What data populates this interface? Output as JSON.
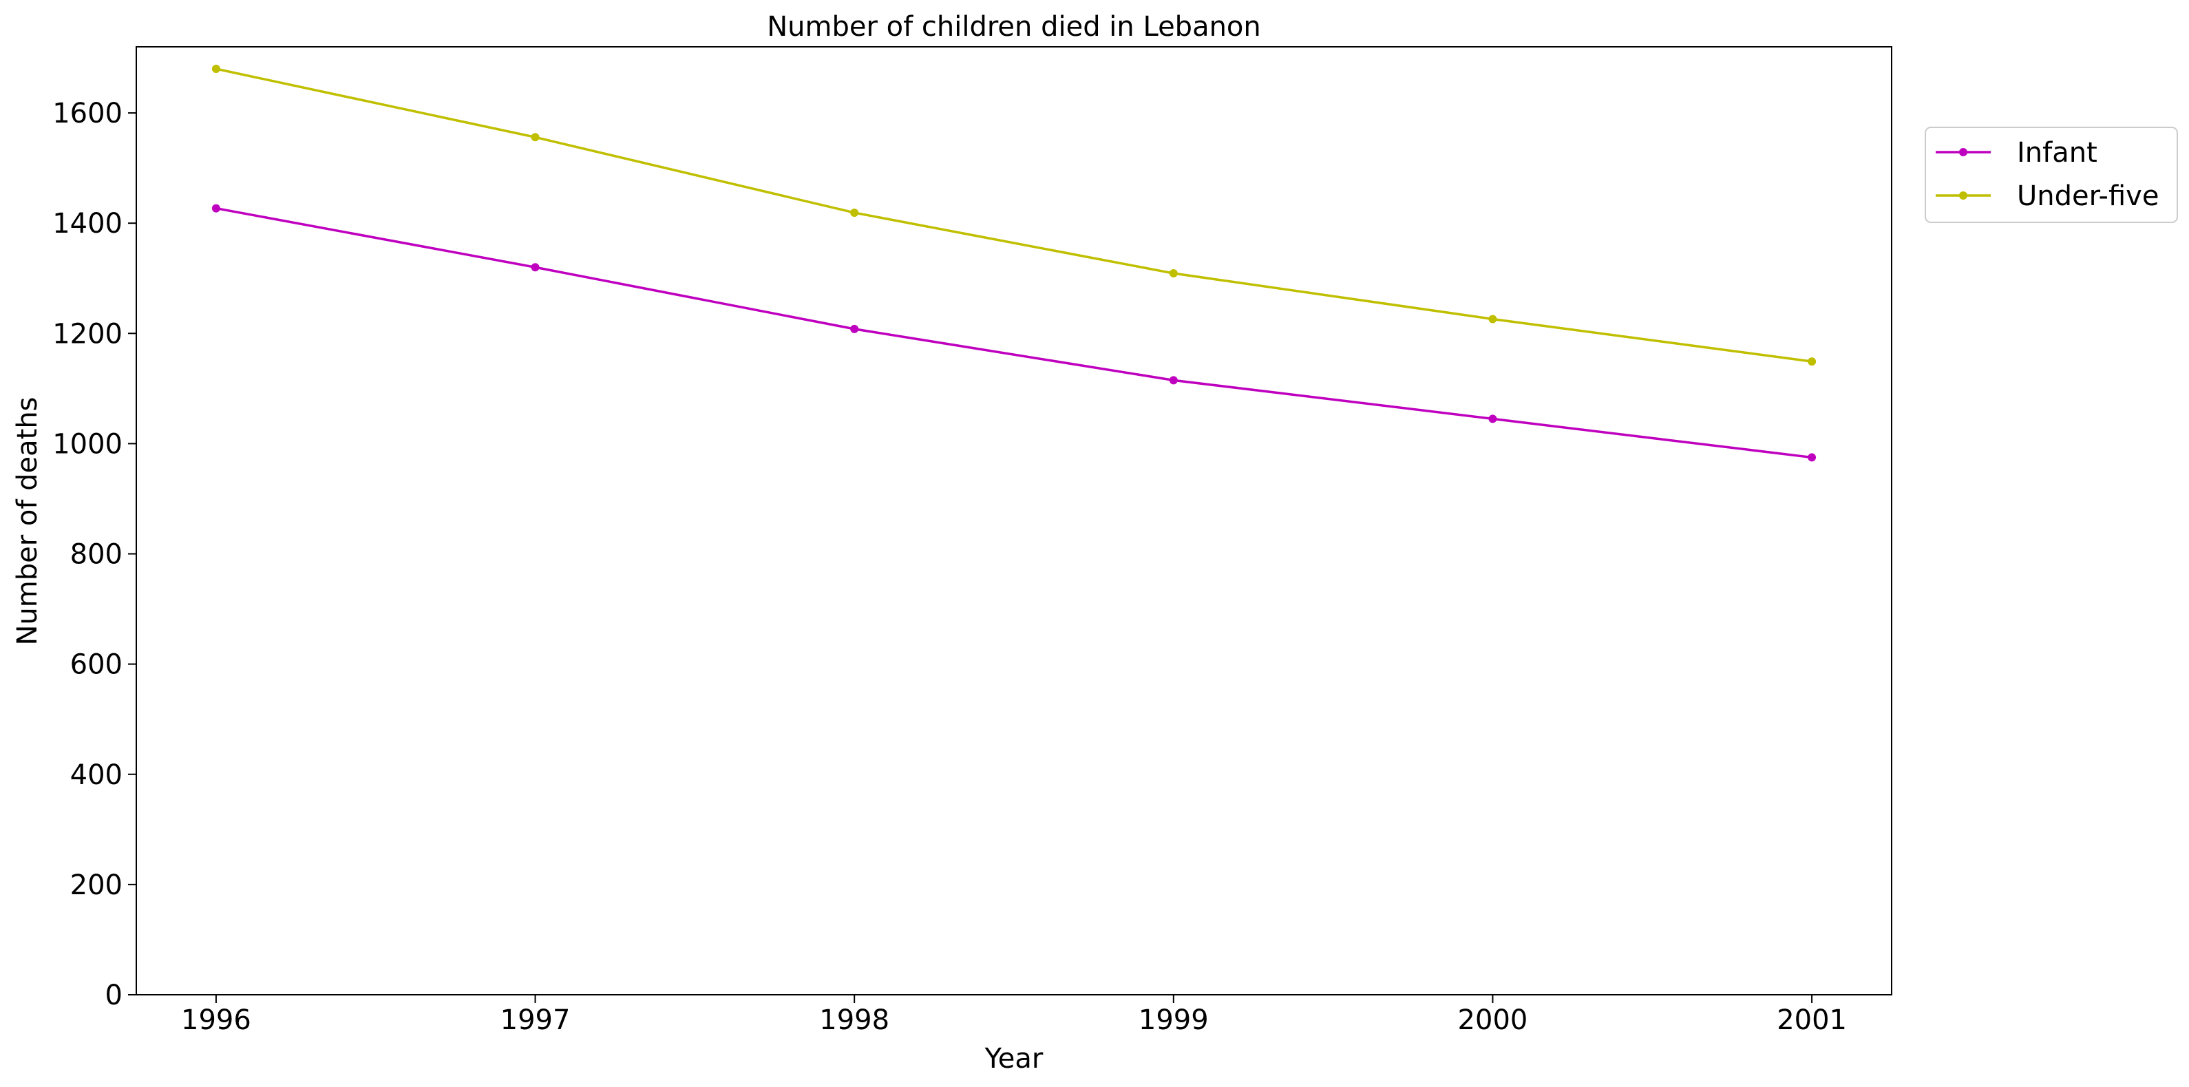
{
  "chart_data": {
    "type": "line",
    "title": "Number of children died in Lebanon",
    "xlabel": "Year",
    "ylabel": "Number of deaths",
    "x": [
      1996,
      1997,
      1998,
      1999,
      2000,
      2001
    ],
    "ylim": [
      0,
      1720
    ],
    "yticks": [
      0,
      200,
      400,
      600,
      800,
      1000,
      1200,
      1400,
      1600
    ],
    "grid": false,
    "legend_position": "outside-top-right",
    "series": [
      {
        "name": "Infant",
        "color": "#bf00bf",
        "values": [
          1427,
          1320,
          1208,
          1115,
          1045,
          975
        ]
      },
      {
        "name": "Under-five",
        "color": "#bfbf00",
        "values": [
          1680,
          1556,
          1419,
          1309,
          1226,
          1149
        ]
      }
    ]
  }
}
